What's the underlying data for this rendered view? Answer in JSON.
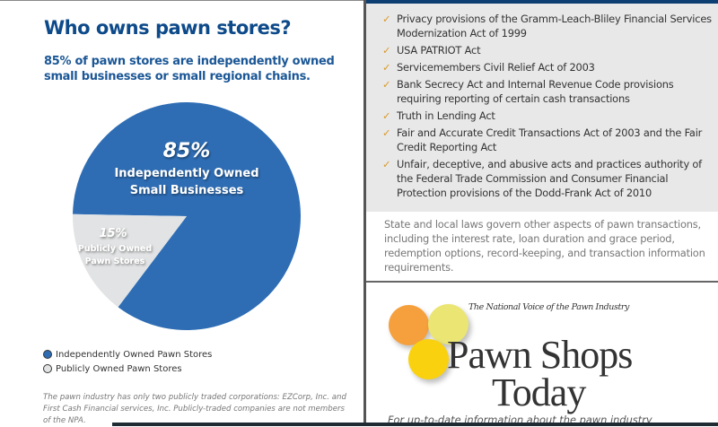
{
  "left_page": {
    "title": "Who owns pawn stores?",
    "subtitle": "85% of pawn stores are independently owned small businesses or small regional chains.",
    "legend": [
      {
        "label": "Independently Owned Pawn Stores",
        "color": "#2e6db4"
      },
      {
        "label": "Publicly Owned Pawn Stores",
        "color": "#e2e3e4"
      }
    ],
    "footnote": "The pawn industry has only two publicly traded corporations: EZCorp, Inc. and First Cash Financial services, Inc. Publicly-traded companies are not members of the NPA."
  },
  "chart_data": {
    "type": "pie",
    "slices": [
      {
        "pct_label": "85%",
        "label_line1": "Independently Owned",
        "label_line2": "Small Businesses",
        "value": 85,
        "color": "#2e6db4"
      },
      {
        "pct_label": "15%",
        "label_line1": "Publicly Owned",
        "label_line2": "Pawn Stores",
        "value": 15,
        "color": "#e2e3e4"
      }
    ]
  },
  "right_page": {
    "laws": [
      "Privacy provisions of the Gramm-Leach-Bliley Financial Services Modernization Act of 1999",
      "USA PATRIOT Act",
      "Servicemembers Civil Relief Act of 2003",
      "Bank Secrecy Act and Internal Revenue Code provisions requiring reporting of certain cash transactions",
      "Truth in Lending Act",
      "Fair and Accurate Credit Transactions Act of 2003 and the Fair Credit Reporting Act",
      "Unfair, deceptive, and abusive acts and practices authority of the Federal Trade Commission and Consumer Financial Protection provisions of the Dodd-Frank Act of 2010"
    ],
    "check_glyph": "✓",
    "state_text": "State and local laws govern other aspects of pawn transactions, including the interest rate, loan duration and grace period, redemption options, record-keeping, and transaction information requirements.",
    "logo": {
      "tagline": "The National Voice of the Pawn Industry",
      "name_line1": "Pawn Shops",
      "name_line2": "Today",
      "circle_colors": [
        "#f5a03c",
        "#ebe574",
        "#f9d10f"
      ]
    },
    "more_text": "For up-to-date information about the pawn industry"
  }
}
